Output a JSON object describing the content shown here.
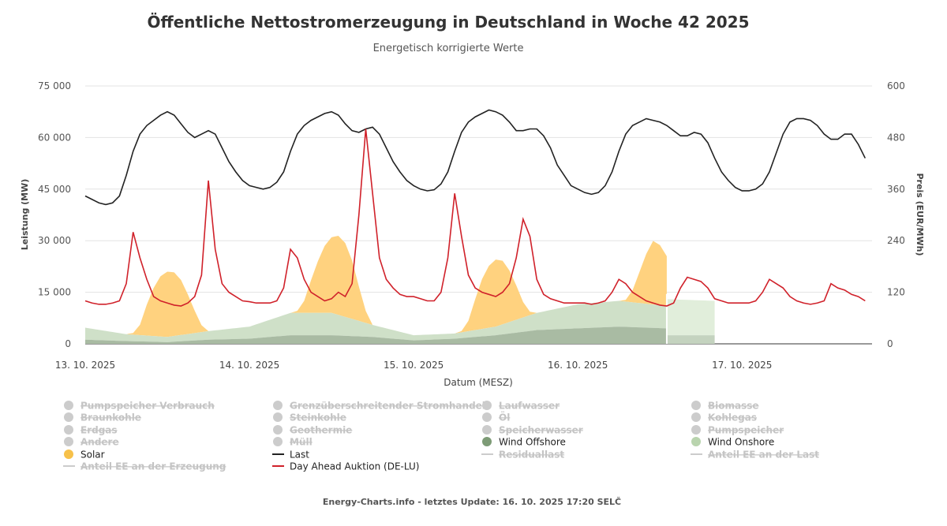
{
  "chart_data": {
    "type": "area+line",
    "title": "Öffentliche Nettostromerzeugung in Deutschland in Woche 42 2025",
    "subtitle": "Energetisch korrigierte Werte",
    "xlabel": "Datum (MESZ)",
    "ylabel_left": "Leistung (MW)",
    "ylabel_right": "Preis (EUR/MWh)",
    "ylim_left": [
      0,
      75000
    ],
    "ylim_right": [
      0,
      600
    ],
    "yticks_left": [
      "0",
      "15 000",
      "30 000",
      "45 000",
      "60 000",
      "75 000"
    ],
    "yticks_right": [
      "0",
      "120",
      "240",
      "360",
      "480",
      "600"
    ],
    "xticks": [
      "13. 10. 2025",
      "14. 10. 2025",
      "15. 10. 2025",
      "16. 10. 2025",
      "17. 10. 2025"
    ],
    "xrange": [
      "2025-10-13T00",
      "2025-10-17T19"
    ],
    "grid": true,
    "forecast_from": "2025-10-16T13",
    "colors": {
      "solar": "#ffd27f",
      "solar_legend": "#f7c14a",
      "wind_offshore": "#a9bba3",
      "wind_offshore_legend": "#7d9b76",
      "wind_onshore": "#cfe0c8",
      "wind_onshore_legend": "#b9d4ae",
      "wind_onshore_forecast": "#e1eedb",
      "wind_offshore_forecast": "#c4d3bf",
      "last": "#222222",
      "price": "#d0212a",
      "hidden": "#cccccc"
    },
    "hourly_start": "2025-10-13T00",
    "series": [
      {
        "name": "Last",
        "unit": "MW",
        "axis": "left",
        "values": [
          43000,
          42000,
          41000,
          40500,
          41000,
          43000,
          49000,
          56000,
          61000,
          63500,
          65000,
          66500,
          67500,
          66500,
          64000,
          61500,
          60000,
          61000,
          62000,
          61000,
          57000,
          53000,
          50000,
          47500,
          46000,
          45500,
          45000,
          45500,
          47000,
          50000,
          56000,
          61000,
          63500,
          65000,
          66000,
          67000,
          67500,
          66500,
          64000,
          62000,
          61500,
          62500,
          63000,
          61000,
          57000,
          53000,
          50000,
          47500,
          46000,
          45000,
          44500,
          44800,
          46500,
          50000,
          56000,
          61500,
          64500,
          66000,
          67000,
          68000,
          67500,
          66500,
          64500,
          62000,
          62000,
          62500,
          62500,
          60500,
          57000,
          52000,
          49000,
          46000,
          45000,
          44000,
          43500,
          44000,
          46000,
          50000,
          56000,
          61000,
          63500,
          64500,
          65500,
          65000,
          64500,
          63500,
          62000,
          60500,
          60500,
          61500,
          61000,
          58500,
          54000,
          50000,
          47500,
          45500,
          44500,
          44500,
          45000,
          46500,
          50000,
          55500,
          61000,
          64500,
          65500,
          65500,
          65000,
          63500,
          61000,
          59500,
          59500,
          61000,
          61000,
          58000,
          54000
        ]
      },
      {
        "name": "Day Ahead Auktion (DE-LU)",
        "unit": "EUR/MWh",
        "axis": "right",
        "values": [
          100,
          95,
          92,
          92,
          95,
          100,
          140,
          260,
          200,
          150,
          110,
          100,
          95,
          90,
          88,
          95,
          110,
          160,
          380,
          220,
          140,
          120,
          110,
          100,
          98,
          95,
          95,
          95,
          100,
          130,
          220,
          200,
          150,
          120,
          110,
          100,
          105,
          120,
          110,
          140,
          300,
          500,
          350,
          200,
          150,
          130,
          115,
          110,
          110,
          105,
          100,
          100,
          120,
          200,
          350,
          250,
          160,
          130,
          120,
          115,
          110,
          120,
          140,
          200,
          290,
          250,
          150,
          115,
          105,
          100,
          95,
          95,
          95,
          95,
          92,
          95,
          100,
          120,
          150,
          140,
          120,
          110,
          100,
          95,
          90,
          88,
          95,
          130,
          155,
          150,
          145,
          130,
          105,
          100,
          95,
          95,
          95,
          95,
          100,
          120,
          150,
          140,
          130,
          110,
          100,
          95,
          92,
          95,
          100,
          140,
          130,
          125,
          115,
          110,
          100
        ]
      },
      {
        "name": "Wind Offshore",
        "unit": "MW",
        "axis": "left",
        "points": [
          [
            "2025-10-13T00",
            1200
          ],
          [
            "2025-10-13T06",
            800
          ],
          [
            "2025-10-13T12",
            500
          ],
          [
            "2025-10-13T18",
            1200
          ],
          [
            "2025-10-14T00",
            1500
          ],
          [
            "2025-10-14T06",
            2500
          ],
          [
            "2025-10-14T12",
            2500
          ],
          [
            "2025-10-14T18",
            2000
          ],
          [
            "2025-10-15T00",
            1000
          ],
          [
            "2025-10-15T06",
            1500
          ],
          [
            "2025-10-15T12",
            2500
          ],
          [
            "2025-10-15T18",
            4000
          ],
          [
            "2025-10-16T00",
            4500
          ],
          [
            "2025-10-16T06",
            5000
          ],
          [
            "2025-10-16T13",
            4500
          ]
        ],
        "forecast": [
          [
            "2025-10-16T13",
            2500
          ],
          [
            "2025-10-16T20",
            2500
          ]
        ]
      },
      {
        "name": "Wind Onshore",
        "unit": "MW",
        "axis": "left",
        "points": [
          [
            "2025-10-13T00",
            3500
          ],
          [
            "2025-10-13T06",
            2000
          ],
          [
            "2025-10-13T12",
            1500
          ],
          [
            "2025-10-13T18",
            2500
          ],
          [
            "2025-10-14T00",
            3500
          ],
          [
            "2025-10-14T06",
            6500
          ],
          [
            "2025-10-14T12",
            6500
          ],
          [
            "2025-10-14T18",
            3500
          ],
          [
            "2025-10-15T00",
            1500
          ],
          [
            "2025-10-15T06",
            1500
          ],
          [
            "2025-10-15T12",
            2500
          ],
          [
            "2025-10-15T18",
            5000
          ],
          [
            "2025-10-16T00",
            7000
          ],
          [
            "2025-10-16T06",
            7500
          ],
          [
            "2025-10-16T13",
            6500
          ]
        ],
        "forecast": [
          [
            "2025-10-16T13",
            10500
          ],
          [
            "2025-10-16T20",
            10000
          ]
        ]
      },
      {
        "name": "Solar",
        "unit": "MW",
        "axis": "left",
        "points": [
          [
            "2025-10-13T06",
            0
          ],
          [
            "2025-10-13T07",
            500
          ],
          [
            "2025-10-13T08",
            3000
          ],
          [
            "2025-10-13T09",
            9000
          ],
          [
            "2025-10-13T10",
            14000
          ],
          [
            "2025-10-13T11",
            17500
          ],
          [
            "2025-10-13T12",
            19000
          ],
          [
            "2025-10-13T13",
            18500
          ],
          [
            "2025-10-13T14",
            16000
          ],
          [
            "2025-10-13T15",
            11500
          ],
          [
            "2025-10-13T16",
            6500
          ],
          [
            "2025-10-13T17",
            2000
          ],
          [
            "2025-10-13T18",
            0
          ],
          [
            "2025-10-14T06",
            0
          ],
          [
            "2025-10-14T07",
            600
          ],
          [
            "2025-10-14T08",
            3500
          ],
          [
            "2025-10-14T09",
            9500
          ],
          [
            "2025-10-14T10",
            15000
          ],
          [
            "2025-10-14T11",
            19500
          ],
          [
            "2025-10-14T12",
            22000
          ],
          [
            "2025-10-14T13",
            23000
          ],
          [
            "2025-10-14T14",
            21500
          ],
          [
            "2025-10-14T15",
            17000
          ],
          [
            "2025-10-14T16",
            10000
          ],
          [
            "2025-10-14T17",
            3500
          ],
          [
            "2025-10-14T18",
            0
          ],
          [
            "2025-10-15T06",
            0
          ],
          [
            "2025-10-15T07",
            400
          ],
          [
            "2025-10-15T08",
            3000
          ],
          [
            "2025-10-15T09",
            9000
          ],
          [
            "2025-10-15T10",
            14500
          ],
          [
            "2025-10-15T11",
            18000
          ],
          [
            "2025-10-15T12",
            19500
          ],
          [
            "2025-10-15T13",
            18500
          ],
          [
            "2025-10-15T14",
            15000
          ],
          [
            "2025-10-15T15",
            10000
          ],
          [
            "2025-10-15T16",
            4500
          ],
          [
            "2025-10-15T17",
            1000
          ],
          [
            "2025-10-15T18",
            0
          ],
          [
            "2025-10-16T06",
            0
          ],
          [
            "2025-10-16T07",
            500
          ],
          [
            "2025-10-16T08",
            3500
          ],
          [
            "2025-10-16T09",
            9000
          ],
          [
            "2025-10-16T10",
            14500
          ],
          [
            "2025-10-16T11",
            18500
          ],
          [
            "2025-10-16T12",
            17500
          ],
          [
            "2025-10-16T13",
            14500
          ]
        ]
      }
    ],
    "legend": [
      {
        "label": "Pumpspeicher Verbrauch",
        "marker": "dot",
        "visible": false
      },
      {
        "label": "Braunkohle",
        "marker": "dot",
        "visible": false
      },
      {
        "label": "Erdgas",
        "marker": "dot",
        "visible": false
      },
      {
        "label": "Andere",
        "marker": "dot",
        "visible": false
      },
      {
        "label": "Solar",
        "marker": "dot",
        "visible": true,
        "color": "#f7c14a"
      },
      {
        "label": "Anteil EE an der Erzeugung",
        "marker": "line",
        "visible": false
      },
      {
        "label": "Grenzüberschreitender Stromhandel",
        "marker": "dot",
        "visible": false
      },
      {
        "label": "Steinkohle",
        "marker": "dot",
        "visible": false
      },
      {
        "label": "Geothermie",
        "marker": "dot",
        "visible": false
      },
      {
        "label": "Müll",
        "marker": "dot",
        "visible": false
      },
      {
        "label": "Last",
        "marker": "line",
        "visible": true,
        "color": "#222222"
      },
      {
        "label": "Day Ahead Auktion (DE-LU)",
        "marker": "line",
        "visible": true,
        "color": "#d0212a"
      },
      {
        "label": "Laufwasser",
        "marker": "dot",
        "visible": false
      },
      {
        "label": "Öl",
        "marker": "dot",
        "visible": false
      },
      {
        "label": "Speicherwasser",
        "marker": "dot",
        "visible": false
      },
      {
        "label": "Wind Offshore",
        "marker": "dot",
        "visible": true,
        "color": "#7d9b76"
      },
      {
        "label": "Residuallast",
        "marker": "line",
        "visible": false
      },
      {
        "label": "Biomasse",
        "marker": "dot",
        "visible": false
      },
      {
        "label": "Kohlegas",
        "marker": "dot",
        "visible": false
      },
      {
        "label": "Pumpspeicher",
        "marker": "dot",
        "visible": false
      },
      {
        "label": "Wind Onshore",
        "marker": "dot",
        "visible": true,
        "color": "#b9d4ae"
      },
      {
        "label": "Anteil EE an der Last",
        "marker": "line",
        "visible": false
      }
    ],
    "footer": "Energy-Charts.info - letztes Update: 16. 10. 2025 17:20 SELČ"
  }
}
